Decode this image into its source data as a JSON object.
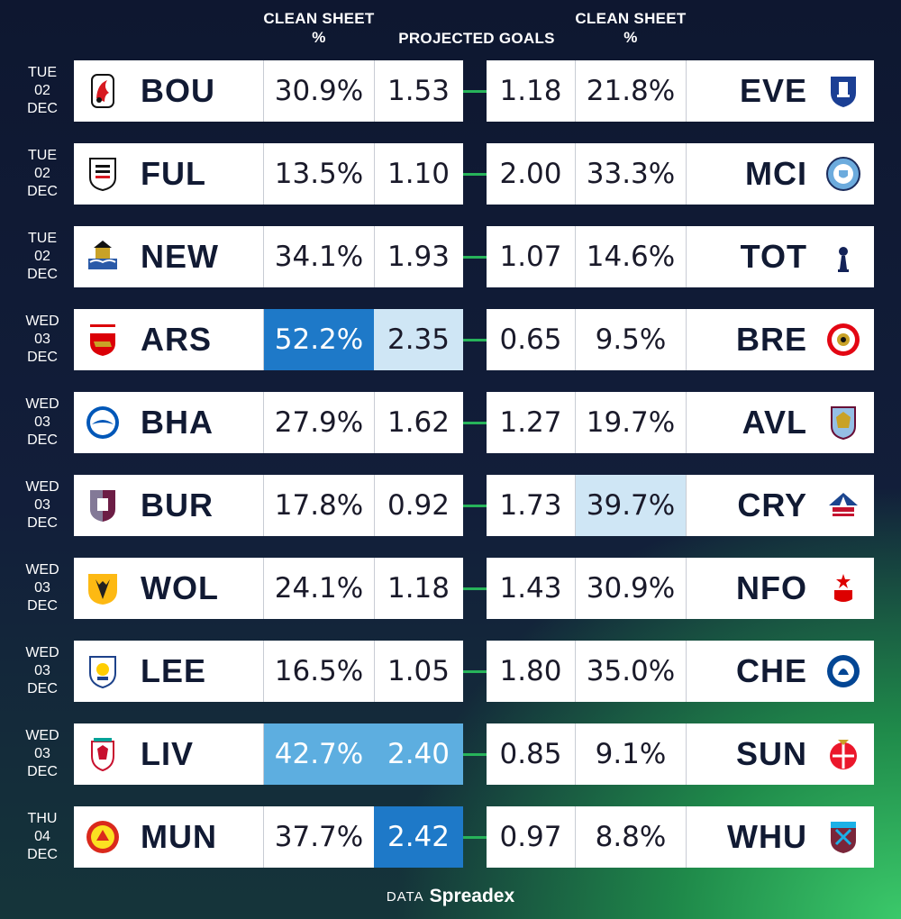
{
  "headers": {
    "left_clean_sheet": "CLEAN SHEET %",
    "projected_goals": "PROJECTED GOALS",
    "right_clean_sheet": "CLEAN SHEET %"
  },
  "colors": {
    "highlight_dark": "#1e79c8",
    "highlight_mid": "#5daee0",
    "highlight_light": "#cfe6f5",
    "connector": "#27b35a"
  },
  "fixtures": [
    {
      "day": "TUE",
      "date": "02",
      "month": "DEC",
      "home": "BOU",
      "home_cs": "30.9%",
      "home_pg": "1.53",
      "away_pg": "1.18",
      "away_cs": "21.8%",
      "away": "EVE",
      "home_icon": "bournemouth-crest-icon",
      "away_icon": "everton-crest-icon"
    },
    {
      "day": "TUE",
      "date": "02",
      "month": "DEC",
      "home": "FUL",
      "home_cs": "13.5%",
      "home_pg": "1.10",
      "away_pg": "2.00",
      "away_cs": "33.3%",
      "away": "MCI",
      "home_icon": "fulham-crest-icon",
      "away_icon": "man-city-crest-icon"
    },
    {
      "day": "TUE",
      "date": "02",
      "month": "DEC",
      "home": "NEW",
      "home_cs": "34.1%",
      "home_pg": "1.93",
      "away_pg": "1.07",
      "away_cs": "14.6%",
      "away": "TOT",
      "home_icon": "newcastle-crest-icon",
      "away_icon": "tottenham-crest-icon"
    },
    {
      "day": "WED",
      "date": "03",
      "month": "DEC",
      "home": "ARS",
      "home_cs": "52.2%",
      "home_pg": "2.35",
      "away_pg": "0.65",
      "away_cs": "9.5%",
      "away": "BRE",
      "home_icon": "arsenal-crest-icon",
      "away_icon": "brentford-crest-icon",
      "hl": {
        "home_cs": "dark",
        "home_pg": "light"
      }
    },
    {
      "day": "WED",
      "date": "03",
      "month": "DEC",
      "home": "BHA",
      "home_cs": "27.9%",
      "home_pg": "1.62",
      "away_pg": "1.27",
      "away_cs": "19.7%",
      "away": "AVL",
      "home_icon": "brighton-crest-icon",
      "away_icon": "aston-villa-crest-icon"
    },
    {
      "day": "WED",
      "date": "03",
      "month": "DEC",
      "home": "BUR",
      "home_cs": "17.8%",
      "home_pg": "0.92",
      "away_pg": "1.73",
      "away_cs": "39.7%",
      "away": "CRY",
      "home_icon": "burnley-crest-icon",
      "away_icon": "crystal-palace-crest-icon",
      "hl": {
        "away_cs": "light"
      }
    },
    {
      "day": "WED",
      "date": "03",
      "month": "DEC",
      "home": "WOL",
      "home_cs": "24.1%",
      "home_pg": "1.18",
      "away_pg": "1.43",
      "away_cs": "30.9%",
      "away": "NFO",
      "home_icon": "wolves-crest-icon",
      "away_icon": "nottingham-forest-crest-icon"
    },
    {
      "day": "WED",
      "date": "03",
      "month": "DEC",
      "home": "LEE",
      "home_cs": "16.5%",
      "home_pg": "1.05",
      "away_pg": "1.80",
      "away_cs": "35.0%",
      "away": "CHE",
      "home_icon": "leeds-crest-icon",
      "away_icon": "chelsea-crest-icon"
    },
    {
      "day": "WED",
      "date": "03",
      "month": "DEC",
      "home": "LIV",
      "home_cs": "42.7%",
      "home_pg": "2.40",
      "away_pg": "0.85",
      "away_cs": "9.1%",
      "away": "SUN",
      "home_icon": "liverpool-crest-icon",
      "away_icon": "sunderland-crest-icon",
      "hl": {
        "home_cs": "mid",
        "home_pg": "mid"
      }
    },
    {
      "day": "THU",
      "date": "04",
      "month": "DEC",
      "home": "MUN",
      "home_cs": "37.7%",
      "home_pg": "2.42",
      "away_pg": "0.97",
      "away_cs": "8.8%",
      "away": "WHU",
      "home_icon": "man-united-crest-icon",
      "away_icon": "west-ham-crest-icon",
      "hl": {
        "home_pg": "dark"
      }
    }
  ],
  "footer": {
    "prefix": "DATA",
    "brand": "Spreadex"
  }
}
